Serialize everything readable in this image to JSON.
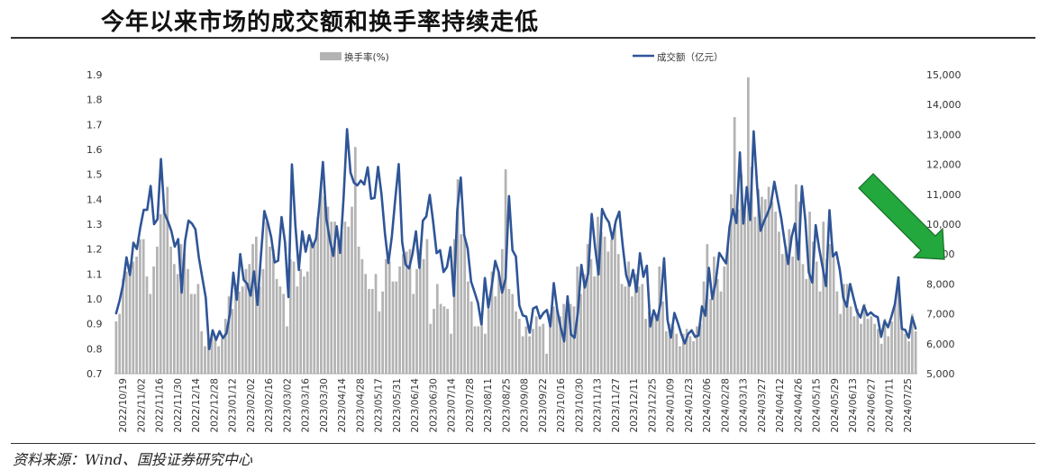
{
  "header": {
    "title": "今年以来市场的成交额和换手率持续走低"
  },
  "footer": {
    "source": "资料来源：Wind、国投证券研究中心"
  },
  "colors": {
    "bar": "#b3b3b3",
    "line": "#2f5597",
    "arrow": "#22a83c",
    "arrow_edge": "#1b6b2a"
  },
  "chart_data": {
    "type": "bar",
    "legend": [
      "换手率(%)",
      "成交额（亿元）"
    ],
    "legend_position": "top",
    "y_left": {
      "min": 0.7,
      "max": 1.9,
      "step": 0.1,
      "ticks": [
        "0.7",
        "0.8",
        "0.9",
        "1.0",
        "1.1",
        "1.2",
        "1.3",
        "1.4",
        "1.5",
        "1.6",
        "1.7",
        "1.8",
        "1.9"
      ]
    },
    "y_right": {
      "min": 5000,
      "max": 15000,
      "step": 1000,
      "ticks": [
        "5,000",
        "6,000",
        "7,000",
        "8,000",
        "9,000",
        "10,000",
        "11,000",
        "12,000",
        "13,000",
        "14,000",
        "15,000"
      ]
    },
    "x_ticks": [
      "2022/10/19",
      "2022/11/02",
      "2022/11/16",
      "2022/11/30",
      "2022/12/14",
      "2022/12/28",
      "2023/01/12",
      "2023/02/02",
      "2023/02/16",
      "2023/03/02",
      "2023/03/16",
      "2023/03/30",
      "2023/04/14",
      "2023/04/28",
      "2023/05/17",
      "2023/05/31",
      "2023/06/14",
      "2023/06/30",
      "2023/07/14",
      "2023/07/28",
      "2023/08/11",
      "2023/08/25",
      "2023/09/08",
      "2023/09/22",
      "2023/10/16",
      "2023/10/30",
      "2023/11/13",
      "2023/11/27",
      "2023/12/11",
      "2023/12/25",
      "2024/01/09",
      "2024/01/23",
      "2024/02/06",
      "2024/02/28",
      "2024/03/13",
      "2024/03/27",
      "2024/04/12",
      "2024/04/26",
      "2024/05/15",
      "2024/05/29",
      "2024/06/13",
      "2024/06/27",
      "2024/07/11",
      "2024/07/25"
    ],
    "series": [
      {
        "name": "换手率(%)",
        "type": "bar",
        "axis": "left",
        "values": [
          0.91,
          0.94,
          1.08,
          1.11,
          1.14,
          1.15,
          1.17,
          1.24,
          1.24,
          1.09,
          1.02,
          1.13,
          1.21,
          1.34,
          1.36,
          1.45,
          1.21,
          1.14,
          1.1,
          1.22,
          1.18,
          1.12,
          1.02,
          1.02,
          1.06,
          0.87,
          0.81,
          0.84,
          0.86,
          0.85,
          0.81,
          0.84,
          0.92,
          1.01,
          0.96,
          1.06,
          1.03,
          1.05,
          1.12,
          1.14,
          1.22,
          1.25,
          1.05,
          1.12,
          1.31,
          1.21,
          1.2,
          1.08,
          1.05,
          1.02,
          0.89,
          1.16,
          1.15,
          1.05,
          1.12,
          1.09,
          1.11,
          1.22,
          1.23,
          1.33,
          1.47,
          1.41,
          1.37,
          1.31,
          1.31,
          1.23,
          1.27,
          1.31,
          1.29,
          1.37,
          1.61,
          1.21,
          1.16,
          1.1,
          1.04,
          1.04,
          1.1,
          0.95,
          1.03,
          1.16,
          1.15,
          1.07,
          1.07,
          1.13,
          1.18,
          1.19,
          1.2,
          1.02,
          1.12,
          1.2,
          1.16,
          1.24,
          0.9,
          0.96,
          1.06,
          0.98,
          0.97,
          0.96,
          0.86,
          1.24,
          1.48,
          1.26,
          1.25,
          1.07,
          0.99,
          0.89,
          0.89,
          0.91,
          0.86,
          0.96,
          1.11,
          1.01,
          1.1,
          1.2,
          1.52,
          1.04,
          1.02,
          0.95,
          0.92,
          0.85,
          0.89,
          0.85,
          0.88,
          0.93,
          0.89,
          0.9,
          0.78,
          0.94,
          0.97,
          0.96,
          0.93,
          0.98,
          0.98,
          0.98,
          0.97,
          1.13,
          1.02,
          1.1,
          1.22,
          1.16,
          1.09,
          1.33,
          1.27,
          1.25,
          1.19,
          1.24,
          1.3,
          1.18,
          1.06,
          1.05,
          1.15,
          1.01,
          1.1,
          1.05,
          1.06,
          0.92,
          0.95,
          0.93,
          0.94,
          1.13,
          0.99,
          0.87,
          0.9,
          0.89,
          0.86,
          0.81,
          0.86,
          0.88,
          0.85,
          0.83,
          0.89,
          0.9,
          1.07,
          1.22,
          1.0,
          1.17,
          1.08,
          1.03,
          1.13,
          1.21,
          1.42,
          1.73,
          1.36,
          1.5,
          1.36,
          1.89,
          1.53,
          1.33,
          1.44,
          1.41,
          1.4,
          1.45,
          1.39,
          1.35,
          1.27,
          1.18,
          1.21,
          1.28,
          1.17,
          1.46,
          1.39,
          1.14,
          1.08,
          1.35,
          1.23,
          1.15,
          1.03,
          1.31,
          1.16,
          1.22,
          1.17,
          1.03,
          0.94,
          1.06,
          1.06,
          0.97,
          0.93,
          0.96,
          0.9,
          0.98,
          0.92,
          0.93,
          0.9,
          0.88,
          0.82,
          0.92,
          0.85,
          0.91,
          0.99,
          1.09,
          0.89,
          0.86,
          0.83,
          0.94,
          0.87
        ]
      },
      {
        "name": "成交额（亿元）",
        "type": "line",
        "axis": "right",
        "values": [
          7020,
          7450,
          7980,
          8890,
          8300,
          9380,
          9170,
          9890,
          10480,
          10480,
          11280,
          10000,
          10170,
          12180,
          10370,
          10100,
          9780,
          9250,
          9500,
          7710,
          9440,
          10120,
          10020,
          9830,
          8880,
          8210,
          7540,
          5820,
          6450,
          6130,
          6420,
          6190,
          6350,
          7000,
          8380,
          7470,
          9000,
          8140,
          8010,
          7610,
          8420,
          7300,
          8930,
          10440,
          10050,
          9560,
          8720,
          8780,
          10240,
          9390,
          7560,
          12000,
          9980,
          8470,
          9760,
          9080,
          9630,
          9230,
          9520,
          10690,
          12080,
          10190,
          9480,
          8940,
          9930,
          9040,
          10900,
          13180,
          11730,
          11390,
          11300,
          11460,
          11330,
          11900,
          10850,
          10880,
          11920,
          11000,
          9690,
          8700,
          9590,
          10850,
          12010,
          9400,
          8650,
          8520,
          9010,
          9760,
          8540,
          10120,
          10260,
          10980,
          10070,
          9030,
          9130,
          8400,
          8570,
          9230,
          7600,
          10480,
          11560,
          9630,
          9190,
          8080,
          7730,
          7360,
          6650,
          8200,
          7210,
          7930,
          8770,
          8400,
          7710,
          8180,
          10940,
          9130,
          8920,
          7280,
          6950,
          6910,
          6370,
          7180,
          7240,
          6850,
          7030,
          7130,
          6580,
          8030,
          7130,
          6550,
          6080,
          7590,
          6310,
          6200,
          7050,
          8640,
          7880,
          8360,
          10340,
          9210,
          8320,
          10510,
          10240,
          10060,
          9510,
          10110,
          10420,
          9280,
          8300,
          7940,
          8470,
          7740,
          9030,
          8240,
          8610,
          6580,
          7120,
          6790,
          7360,
          8860,
          6800,
          6210,
          7030,
          6700,
          6320,
          6010,
          6330,
          6450,
          6230,
          6280,
          7250,
          6940,
          8540,
          7500,
          8070,
          9040,
          8860,
          8690,
          9910,
          10500,
          10040,
          12400,
          10020,
          11240,
          10140,
          13110,
          11280,
          9780,
          10100,
          10350,
          10660,
          11420,
          10810,
          10200,
          9400,
          8670,
          9560,
          10020,
          8820,
          11270,
          10130,
          8390,
          8050,
          9970,
          9190,
          8570,
          7930,
          10470,
          8920,
          9060,
          8470,
          7540,
          7240,
          8000,
          7520,
          7070,
          6880,
          7270,
          6950,
          7050,
          6940,
          6890,
          6230,
          6760,
          6550,
          6920,
          7330,
          8220,
          6500,
          6460,
          6200,
          6890,
          6510
        ]
      }
    ],
    "annotation": {
      "type": "arrow",
      "direction": "down-right",
      "color": "green"
    }
  }
}
